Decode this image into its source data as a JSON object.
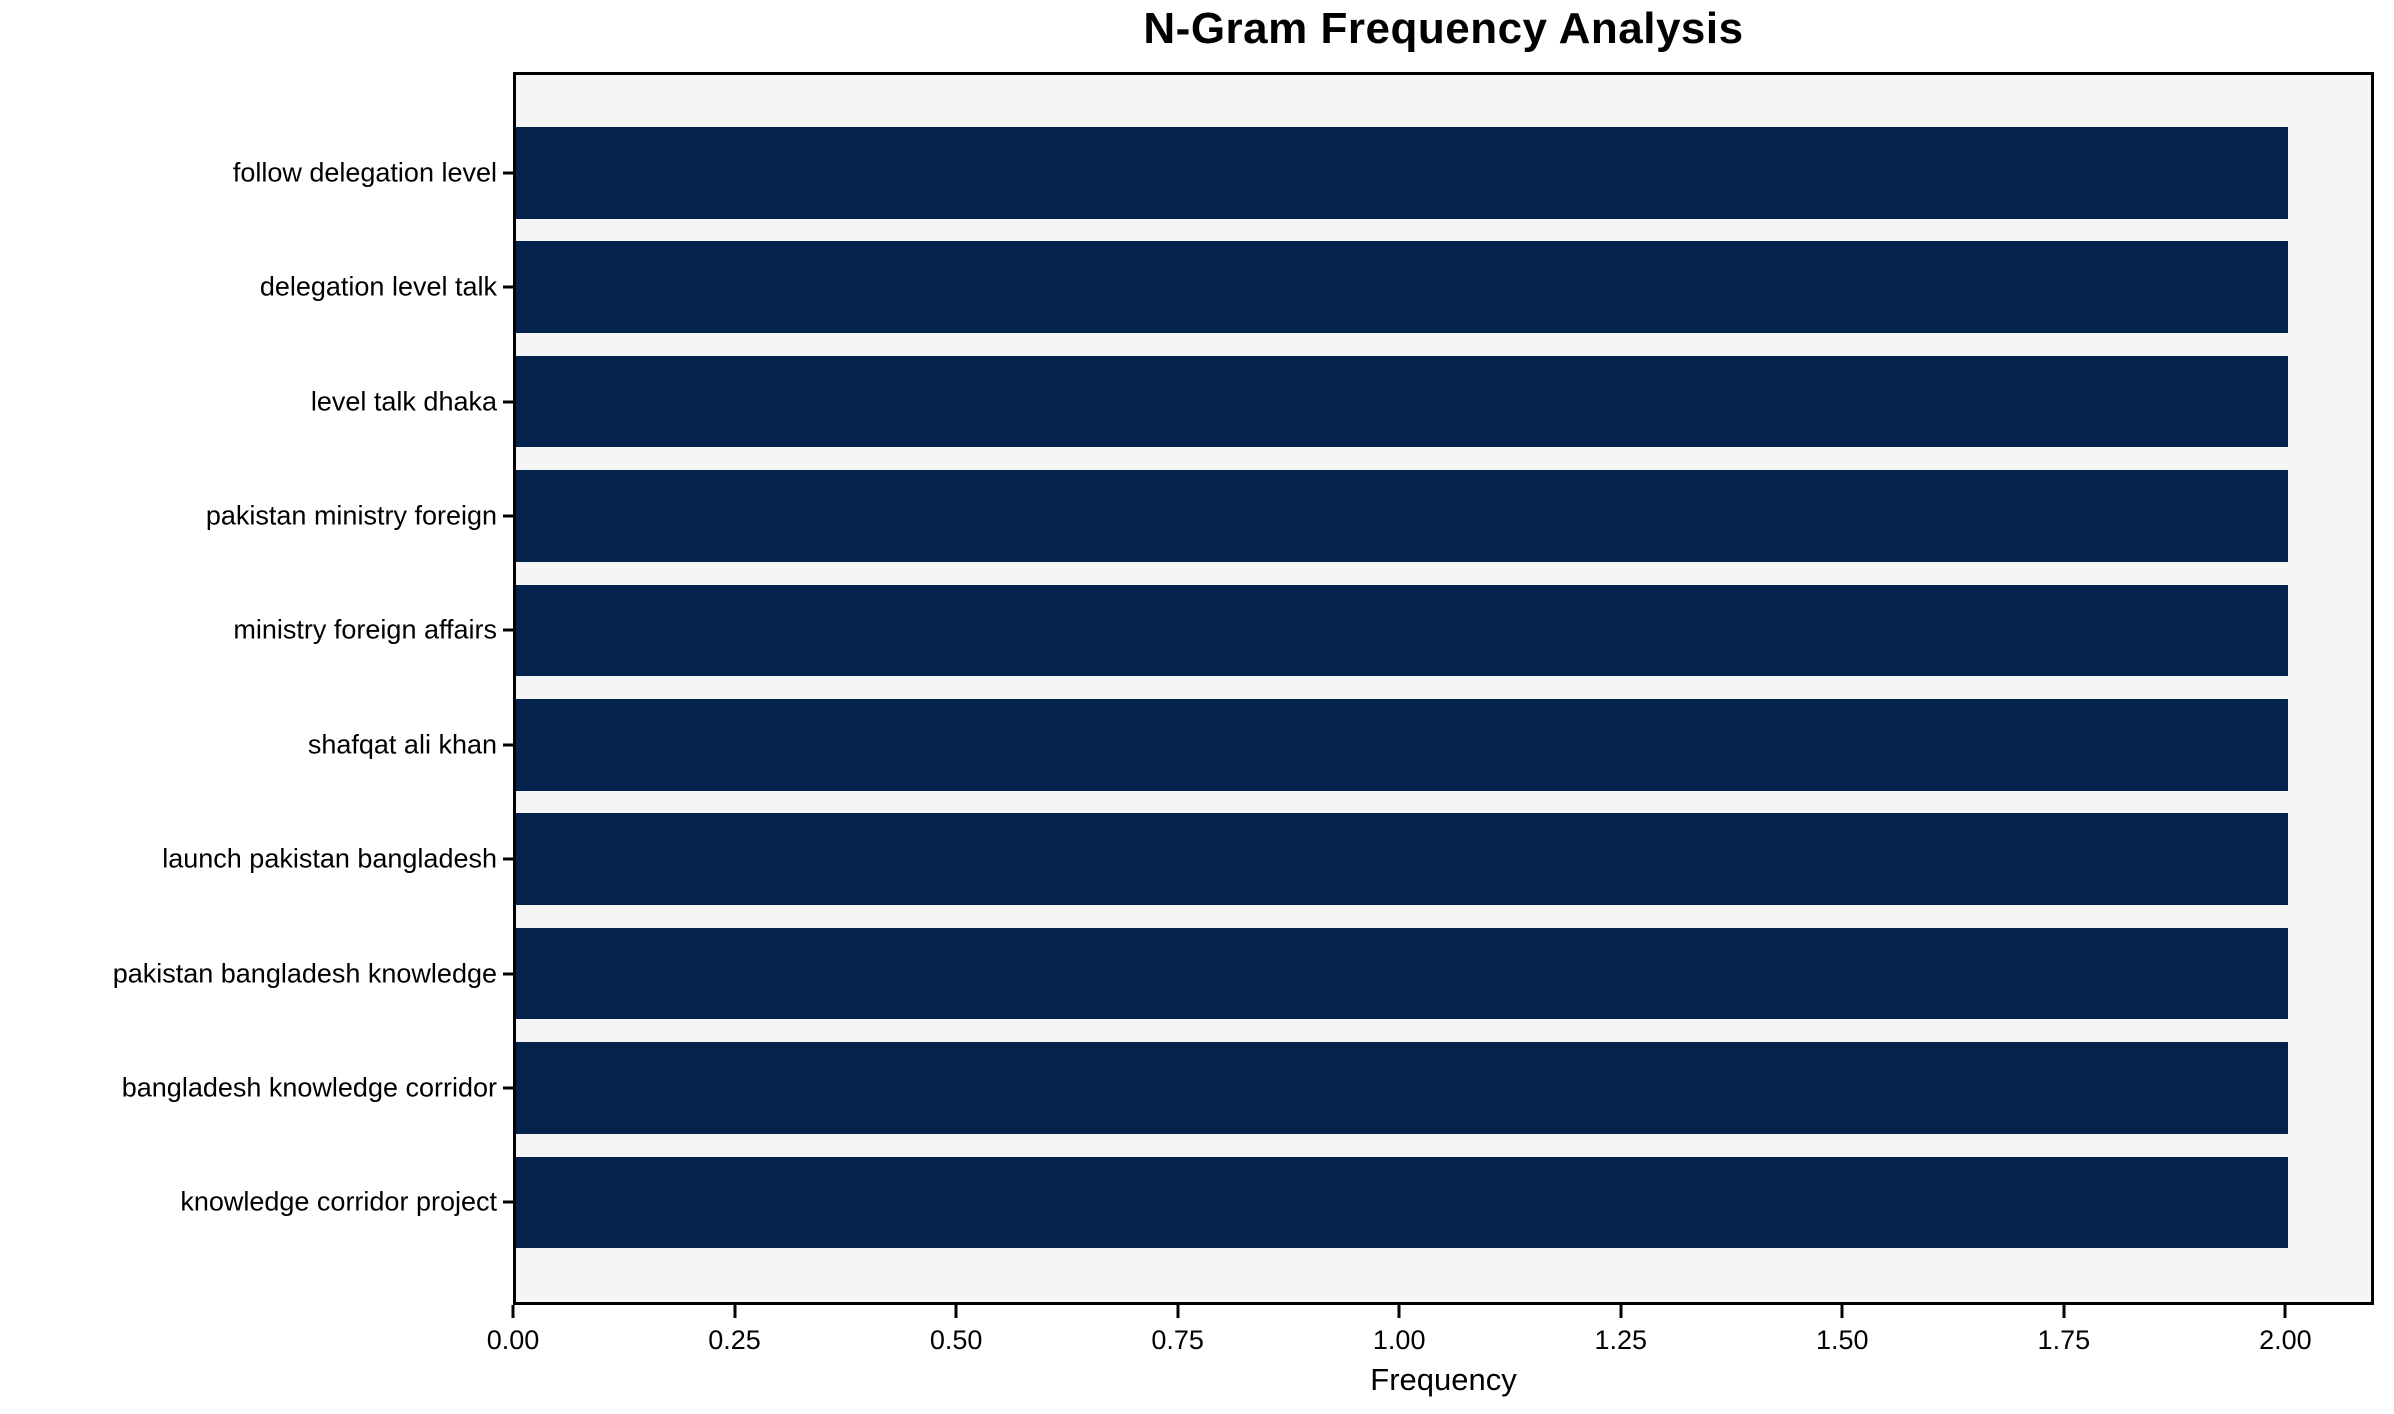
{
  "chart_data": {
    "type": "bar",
    "orientation": "horizontal",
    "title": "N-Gram Frequency Analysis",
    "xlabel": "Frequency",
    "ylabel": "",
    "categories": [
      "follow delegation level",
      "delegation level talk",
      "level talk dhaka",
      "pakistan ministry foreign",
      "ministry foreign affairs",
      "shafqat ali khan",
      "launch pakistan bangladesh",
      "pakistan bangladesh knowledge",
      "bangladesh knowledge corridor",
      "knowledge corridor project"
    ],
    "values": [
      2,
      2,
      2,
      2,
      2,
      2,
      2,
      2,
      2,
      2
    ],
    "xlim": [
      0,
      2.1
    ],
    "xticks": [
      0,
      0.25,
      0.5,
      0.75,
      1.0,
      1.25,
      1.5,
      1.75,
      2.0
    ],
    "xtick_labels": [
      "0.00",
      "0.25",
      "0.50",
      "0.75",
      "1.00",
      "1.25",
      "1.50",
      "1.75",
      "2.00"
    ],
    "grid": false,
    "legend_position": "none",
    "bar_color": "#03234d",
    "plot_background": "#f5f5f6",
    "figure_background": "#ffffff",
    "axis_color": "#000000",
    "text_color": "#000000"
  }
}
